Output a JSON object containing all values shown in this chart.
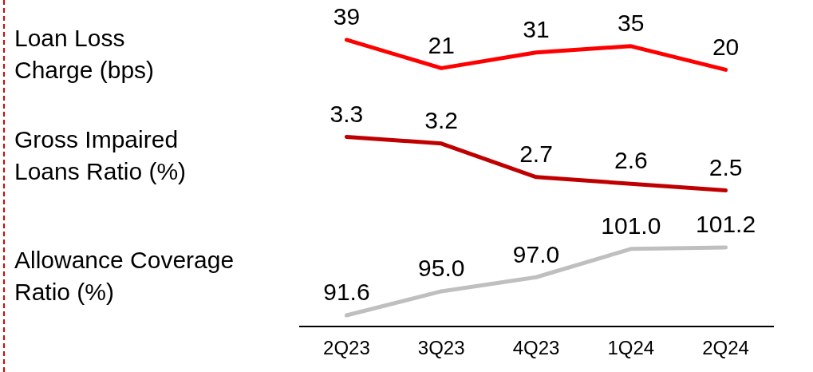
{
  "chart_data": [
    {
      "type": "line",
      "categories": [
        null,
        null,
        null,
        null,
        null
      ],
      "series": [
        {
          "name": "Loan Loss Charge (bps)",
          "color": "#ff0000",
          "values": [
            39,
            21,
            31,
            35,
            20
          ],
          "value_labels": [
            "39",
            "21",
            "31",
            "35",
            "20"
          ]
        }
      ],
      "legend": false,
      "grid": false,
      "marker": "none",
      "tick_labels": false
    },
    {
      "type": "line",
      "categories": [
        null,
        null,
        null,
        null,
        null
      ],
      "series": [
        {
          "name": "Gross Impaired Loans Ratio (%)",
          "color": "#c00000",
          "values": [
            3.3,
            3.2,
            2.7,
            2.6,
            2.5
          ],
          "value_labels": [
            "3.3",
            "3.2",
            "2.7",
            "2.6",
            "2.5"
          ]
        }
      ],
      "legend": false,
      "grid": false,
      "marker": "none",
      "tick_labels": false
    },
    {
      "type": "line",
      "categories": [
        "2Q23",
        "3Q23",
        "4Q23",
        "1Q24",
        "2Q24"
      ],
      "series": [
        {
          "name": "Allowance Coverage Ratio (%)",
          "color": "#bfbfbf",
          "values": [
            91.6,
            95.0,
            97.0,
            101.0,
            101.2
          ],
          "value_labels": [
            "91.6",
            "95.0",
            "97.0",
            "101.0",
            "101.2"
          ]
        }
      ],
      "legend": false,
      "grid": false,
      "marker": "none",
      "tick_labels": "x"
    }
  ]
}
